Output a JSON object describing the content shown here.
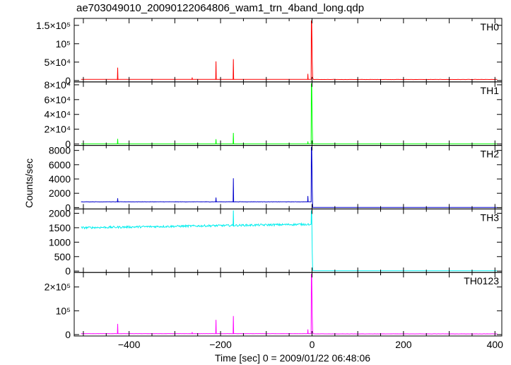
{
  "page_title": "ae703049010_20090122064806_wam1_trn_4band_long.qdp",
  "chart_data": {
    "type": "line",
    "xlabel": "Time [sec] 0 = 2009/01/22 06:48:06",
    "ylabel": "Counts/sec",
    "xlim": [
      -520,
      415
    ],
    "x_ticks": [
      -400,
      -200,
      0,
      200,
      400
    ],
    "x_tick_labels": [
      "−400",
      "−200",
      "0",
      "200",
      "400"
    ],
    "panels": [
      {
        "name": "TH0",
        "color": "#ff0000",
        "ylim": [
          0,
          165000
        ],
        "y_ticks": [
          0,
          50000,
          100000,
          150000
        ],
        "y_tick_labels": [
          "0",
          "5×10⁴",
          "10⁵",
          "1.5×10⁵"
        ],
        "baseline": 3000,
        "post_level": 2600,
        "peak": 163000,
        "spikes": [
          [
            -425,
            35000
          ],
          [
            -262,
            8000
          ],
          [
            -210,
            52000
          ],
          [
            -172,
            58000
          ],
          [
            -9,
            18000
          ],
          [
            -4,
            12000
          ]
        ]
      },
      {
        "name": "TH1",
        "color": "#00ff00",
        "ylim": [
          0,
          82000
        ],
        "y_ticks": [
          0,
          20000,
          40000,
          60000,
          80000
        ],
        "y_tick_labels": [
          "0",
          "2×10⁴",
          "4×10⁴",
          "6×10⁴",
          "8×10⁴"
        ],
        "baseline": 200,
        "post_level": 200,
        "peak": 82000,
        "spikes": [
          [
            -425,
            7000
          ],
          [
            -210,
            6500
          ],
          [
            -172,
            15000
          ],
          [
            -9,
            3500
          ]
        ]
      },
      {
        "name": "TH2",
        "color": "#0000cd",
        "ylim": [
          0,
          8500
        ],
        "y_ticks": [
          0,
          2000,
          4000,
          6000,
          8000
        ],
        "y_tick_labels": [
          "0",
          "2000",
          "4000",
          "6000",
          "8000"
        ],
        "baseline": 800,
        "post_level": 10,
        "peak": 8500,
        "spikes": [
          [
            -425,
            1300
          ],
          [
            -210,
            1400
          ],
          [
            -172,
            4100
          ],
          [
            -9,
            1600
          ]
        ]
      },
      {
        "name": "TH3",
        "color": "#00eeee",
        "ylim": [
          0,
          2100
        ],
        "y_ticks": [
          0,
          500,
          1000,
          1500,
          2000
        ],
        "y_tick_labels": [
          "0",
          "500",
          "1000",
          "1500",
          "2000"
        ],
        "baseline": 1500,
        "baseline_end": 1620,
        "post_level": 10,
        "peak": 2100,
        "spikes": [
          [
            -172,
            2100
          ]
        ]
      },
      {
        "name": "TH0123",
        "color": "#ff00ff",
        "ylim": [
          0,
          255000
        ],
        "y_ticks": [
          0,
          100000,
          200000
        ],
        "y_tick_labels": [
          "0",
          "10⁵",
          "2×10⁵"
        ],
        "baseline": 4000,
        "post_level": 3000,
        "peak": 255000,
        "spikes": [
          [
            -425,
            45000
          ],
          [
            -262,
            10000
          ],
          [
            -210,
            62000
          ],
          [
            -172,
            78000
          ],
          [
            -9,
            22000
          ],
          [
            -4,
            15000
          ]
        ]
      }
    ]
  }
}
